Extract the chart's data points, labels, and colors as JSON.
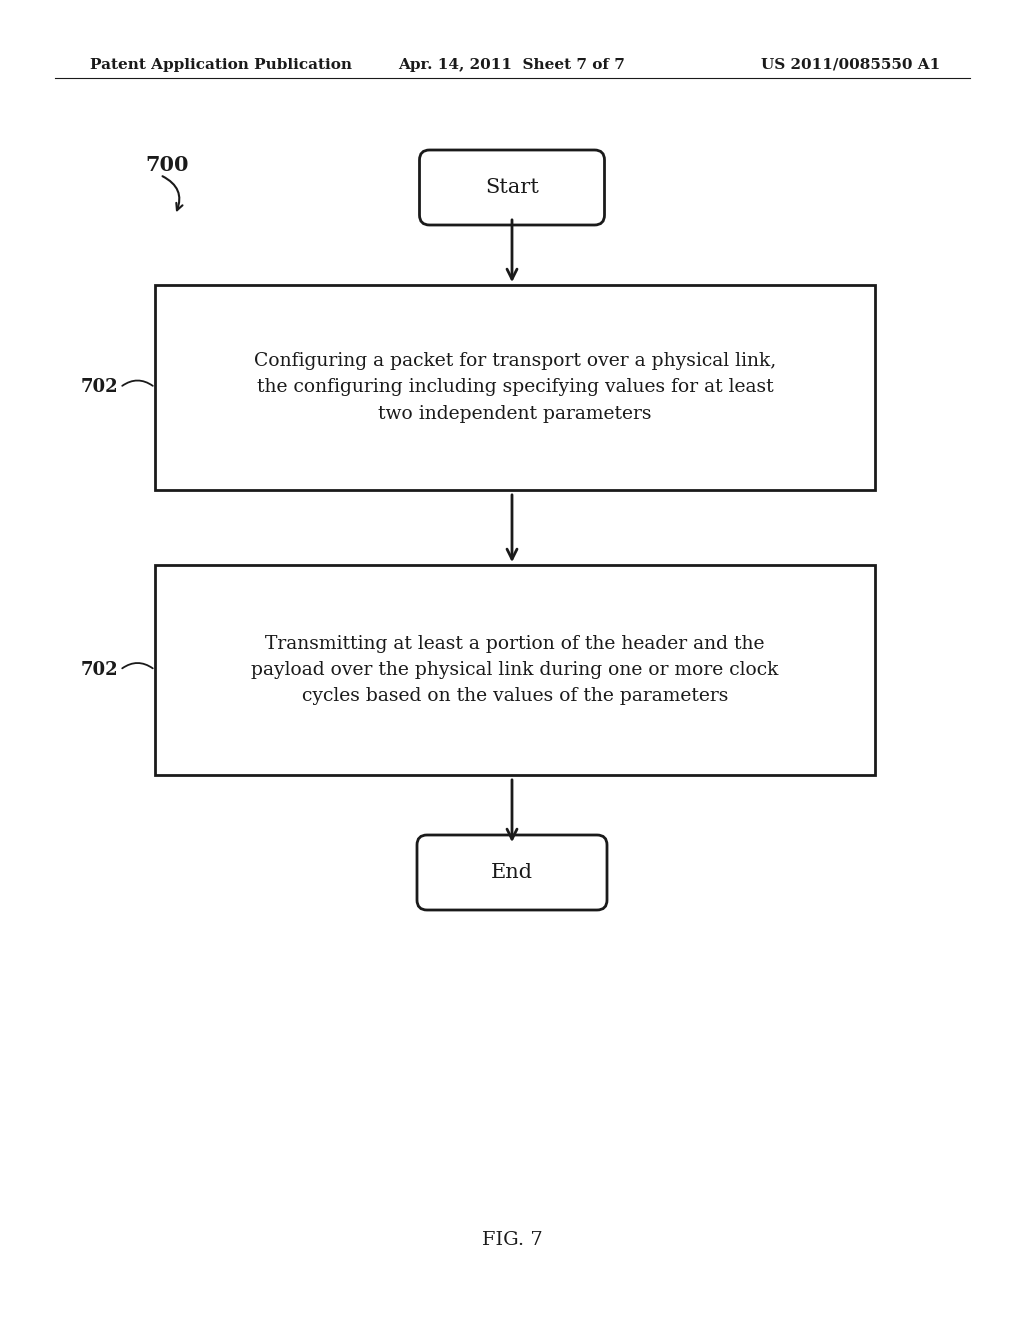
{
  "bg_color": "#ffffff",
  "header_left": "Patent Application Publication",
  "header_center": "Apr. 14, 2011  Sheet 7 of 7",
  "header_right": "US 2011/0085550 A1",
  "fig_label": "FIG. 7",
  "diagram_number": "700",
  "box1_label": "702",
  "box2_label": "702",
  "start_text": "Start",
  "end_text": "End",
  "box1_text": "Configuring a packet for transport over a physical link,\nthe configuring including specifying values for at least\ntwo independent parameters",
  "box2_text": "Transmitting at least a portion of the header and the\npayload over the physical link during one or more clock\ncycles based on the values of the parameters",
  "arrow_color": "#1a1a1a",
  "text_color": "#1a1a1a",
  "box_edge_color": "#1a1a1a",
  "line_width": 2.0,
  "font_size_header": 11,
  "font_size_box": 13.5,
  "font_size_label": 13,
  "font_size_startend": 15,
  "font_size_fig": 14,
  "font_size_diag_num": 15
}
